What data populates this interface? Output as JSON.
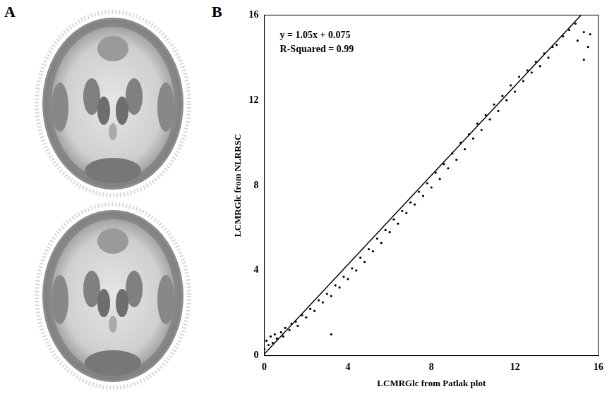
{
  "panel_labels": [
    "A",
    "B"
  ],
  "chart_data": {
    "type": "scatter",
    "x_label": "LCMRGlc from Patlak plot",
    "y_label": "LCMRGlc from NLRRSC",
    "annotations": [
      "y = 1.05x + 0.075",
      "R-Squared = 0.99"
    ],
    "xlim": [
      0,
      16
    ],
    "xticks": [
      0,
      4,
      8,
      12,
      16
    ],
    "ylim": [
      0,
      16
    ],
    "yticks": [
      0,
      4,
      8,
      12,
      16
    ],
    "grid": false,
    "series": [
      {
        "type": "scatter",
        "color": "#000000",
        "marker": "dot",
        "x": [
          0.0,
          0.1,
          0.2,
          0.3,
          0.4,
          0.5,
          0.6,
          0.8,
          0.9,
          1.0,
          1.2,
          1.3,
          1.5,
          1.6,
          1.8,
          2.0,
          2.2,
          2.4,
          2.6,
          2.8,
          3.0,
          3.2,
          3.2,
          3.4,
          3.6,
          3.8,
          4.0,
          4.2,
          4.4,
          4.6,
          4.8,
          5.0,
          5.2,
          5.4,
          5.6,
          5.8,
          6.0,
          6.2,
          6.4,
          6.6,
          6.8,
          7.0,
          7.2,
          7.4,
          7.6,
          7.8,
          8.0,
          8.2,
          8.4,
          8.6,
          8.8,
          9.0,
          9.2,
          9.4,
          9.6,
          9.8,
          10.0,
          10.2,
          10.4,
          10.6,
          10.8,
          11.0,
          11.2,
          11.4,
          11.6,
          11.8,
          12.0,
          12.2,
          12.4,
          12.6,
          12.8,
          13.0,
          13.2,
          13.4,
          13.6,
          13.8,
          14.0,
          14.3,
          14.6,
          14.9,
          15.0,
          15.3,
          15.5,
          15.6,
          15.3
        ],
        "values": [
          0.3,
          0.7,
          0.5,
          0.9,
          0.6,
          1.0,
          0.8,
          1.1,
          0.9,
          1.3,
          1.2,
          1.5,
          1.6,
          1.4,
          1.9,
          1.8,
          2.2,
          2.1,
          2.6,
          2.5,
          2.9,
          1.0,
          2.8,
          3.3,
          3.2,
          3.7,
          3.6,
          4.1,
          4.0,
          4.6,
          4.4,
          5.0,
          4.9,
          5.5,
          5.3,
          5.9,
          5.8,
          6.4,
          6.2,
          6.8,
          6.7,
          7.2,
          7.1,
          7.7,
          7.5,
          8.1,
          7.9,
          8.6,
          8.3,
          9.0,
          8.8,
          9.5,
          9.2,
          10.0,
          9.7,
          10.4,
          10.2,
          10.9,
          10.6,
          11.3,
          11.1,
          11.8,
          11.5,
          12.2,
          12.0,
          12.7,
          12.4,
          13.1,
          12.9,
          13.4,
          13.3,
          13.8,
          13.6,
          14.2,
          14.0,
          14.5,
          14.6,
          15.0,
          15.3,
          15.6,
          14.8,
          15.2,
          14.5,
          15.1,
          13.9
        ]
      },
      {
        "type": "line",
        "color": "#000000",
        "line_style": "solid",
        "x": [
          0,
          15.15
        ],
        "values": [
          0.075,
          15.98
        ]
      }
    ]
  }
}
